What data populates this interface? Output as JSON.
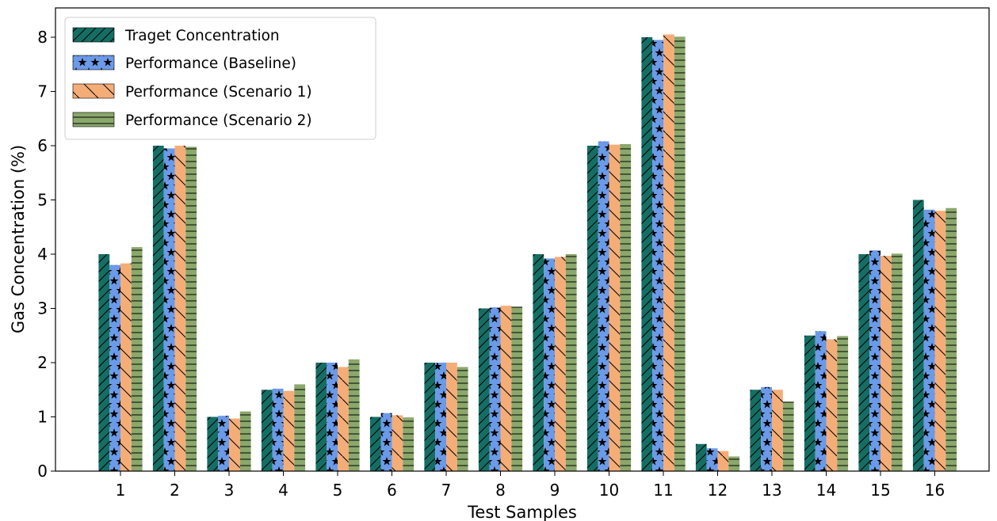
{
  "chart_data": {
    "type": "bar",
    "title": "",
    "xlabel": "Test Samples",
    "ylabel": "Gas Concentration (%)",
    "ylim": [
      0,
      8.3
    ],
    "yticks": [
      "0",
      "1",
      "2",
      "3",
      "4",
      "5",
      "6",
      "7",
      "8"
    ],
    "categories": [
      "1",
      "2",
      "3",
      "4",
      "5",
      "6",
      "7",
      "8",
      "9",
      "10",
      "11",
      "12",
      "13",
      "14",
      "15",
      "16"
    ],
    "grid": false,
    "legend_position": "top-left",
    "series": [
      {
        "name": "Traget Concentration",
        "color": "#146e64",
        "hatch": "//",
        "values": [
          4.0,
          6.0,
          1.0,
          1.5,
          2.0,
          1.0,
          2.0,
          3.0,
          4.0,
          6.0,
          8.0,
          0.5,
          1.5,
          2.5,
          4.0,
          5.0
        ]
      },
      {
        "name": "Performance (Baseline)",
        "color": "#6b9ae8",
        "hatch": "*",
        "values": [
          3.8,
          5.95,
          1.02,
          1.52,
          2.0,
          1.07,
          2.0,
          3.02,
          3.92,
          6.08,
          7.95,
          0.42,
          1.55,
          2.58,
          4.07,
          4.82
        ]
      },
      {
        "name": "Performance (Scenario 1)",
        "color": "#f5ad78",
        "hatch": "\\",
        "values": [
          3.83,
          6.0,
          0.97,
          1.48,
          1.92,
          1.03,
          2.0,
          3.05,
          3.95,
          6.02,
          8.05,
          0.37,
          1.5,
          2.43,
          3.97,
          4.8
        ]
      },
      {
        "name": "Performance (Scenario 2)",
        "color": "#8aa86b",
        "hatch": "-",
        "values": [
          4.13,
          5.98,
          1.1,
          1.6,
          2.06,
          0.99,
          1.92,
          3.03,
          4.0,
          6.03,
          8.01,
          0.27,
          1.28,
          2.49,
          4.01,
          4.85
        ]
      }
    ]
  }
}
